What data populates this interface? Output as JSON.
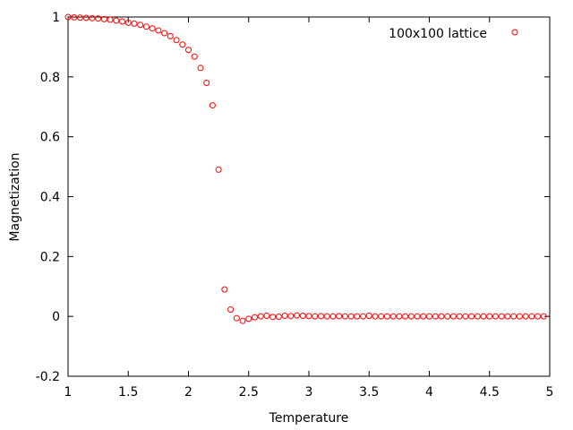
{
  "chart_data": {
    "type": "scatter",
    "title": "",
    "xlabel": "Temperature",
    "ylabel": "Magnetization",
    "xlim": [
      1,
      5
    ],
    "ylim": [
      -0.2,
      1
    ],
    "x_ticks": [
      "1",
      "1.5",
      "2",
      "2.5",
      "3",
      "3.5",
      "4",
      "4.5",
      "5"
    ],
    "y_ticks": [
      "-0.2",
      "0",
      "0.2",
      "0.4",
      "0.6",
      "0.8",
      "1"
    ],
    "x_tick_values": [
      1,
      1.5,
      2,
      2.5,
      3,
      3.5,
      4,
      4.5,
      5
    ],
    "y_tick_values": [
      -0.2,
      0,
      0.2,
      0.4,
      0.6,
      0.8,
      1
    ],
    "grid": false,
    "legend_position": "top-right",
    "marker": "open-circle",
    "series": [
      {
        "name": "100x100 lattice",
        "color": "#ff0000",
        "points": [
          [
            1.0,
            1.0
          ],
          [
            1.05,
            0.999
          ],
          [
            1.1,
            0.998
          ],
          [
            1.15,
            0.997
          ],
          [
            1.2,
            0.996
          ],
          [
            1.25,
            0.995
          ],
          [
            1.3,
            0.993
          ],
          [
            1.35,
            0.991
          ],
          [
            1.4,
            0.988
          ],
          [
            1.45,
            0.985
          ],
          [
            1.5,
            0.981
          ],
          [
            1.55,
            0.978
          ],
          [
            1.6,
            0.974
          ],
          [
            1.65,
            0.968
          ],
          [
            1.7,
            0.962
          ],
          [
            1.75,
            0.955
          ],
          [
            1.8,
            0.946
          ],
          [
            1.85,
            0.936
          ],
          [
            1.9,
            0.923
          ],
          [
            1.95,
            0.908
          ],
          [
            2.0,
            0.89
          ],
          [
            2.05,
            0.868
          ],
          [
            2.1,
            0.83
          ],
          [
            2.15,
            0.78
          ],
          [
            2.2,
            0.705
          ],
          [
            2.25,
            0.49
          ],
          [
            2.3,
            0.09
          ],
          [
            2.35,
            0.023
          ],
          [
            2.4,
            -0.006
          ],
          [
            2.45,
            -0.015
          ],
          [
            2.5,
            -0.008
          ],
          [
            2.55,
            -0.003
          ],
          [
            2.6,
            0.0
          ],
          [
            2.65,
            0.002
          ],
          [
            2.7,
            -0.002
          ],
          [
            2.75,
            -0.001
          ],
          [
            2.8,
            0.002
          ],
          [
            2.85,
            0.001
          ],
          [
            2.9,
            0.003
          ],
          [
            2.95,
            0.002
          ],
          [
            3.0,
            0.001
          ],
          [
            3.05,
            0.0
          ],
          [
            3.1,
            0.001
          ],
          [
            3.15,
            0.0
          ],
          [
            3.2,
            0.0
          ],
          [
            3.25,
            0.001
          ],
          [
            3.3,
            0.0
          ],
          [
            3.35,
            0.0
          ],
          [
            3.4,
            0.0
          ],
          [
            3.45,
            0.0
          ],
          [
            3.5,
            0.002
          ],
          [
            3.55,
            0.0
          ],
          [
            3.6,
            0.0
          ],
          [
            3.65,
            0.0
          ],
          [
            3.7,
            0.0
          ],
          [
            3.75,
            0.0
          ],
          [
            3.8,
            0.0
          ],
          [
            3.85,
            0.0
          ],
          [
            3.9,
            0.0
          ],
          [
            3.95,
            0.0
          ],
          [
            4.0,
            0.0
          ],
          [
            4.05,
            0.0
          ],
          [
            4.1,
            0.0
          ],
          [
            4.15,
            0.0
          ],
          [
            4.2,
            0.0
          ],
          [
            4.25,
            0.0
          ],
          [
            4.3,
            0.0
          ],
          [
            4.35,
            0.0
          ],
          [
            4.4,
            0.0
          ],
          [
            4.45,
            0.0
          ],
          [
            4.5,
            0.0
          ],
          [
            4.55,
            0.0
          ],
          [
            4.6,
            0.0
          ],
          [
            4.65,
            0.0
          ],
          [
            4.7,
            0.0
          ],
          [
            4.75,
            0.0
          ],
          [
            4.8,
            0.0
          ],
          [
            4.85,
            0.0
          ],
          [
            4.9,
            0.0
          ],
          [
            4.95,
            0.0
          ]
        ]
      }
    ]
  }
}
